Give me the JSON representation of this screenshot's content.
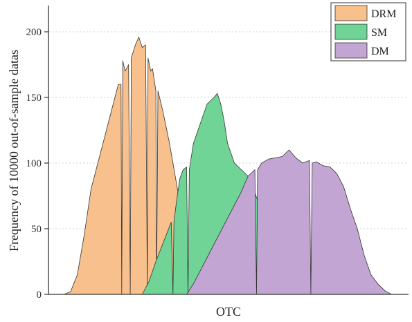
{
  "chart_data": {
    "type": "area",
    "xlabel": "OTC",
    "ylabel": "Frequency of 10000 out-of-sample datas",
    "ylim": [
      0,
      220
    ],
    "yticks": [
      0,
      50,
      100,
      150,
      200
    ],
    "grid": "horizontal dotted",
    "legend_position": "top-right",
    "x_index_range": [
      0,
      100
    ],
    "series": [
      {
        "name": "DRM",
        "color": "#f8c08c",
        "points": [
          [
            0,
            0
          ],
          [
            2,
            2
          ],
          [
            4,
            15
          ],
          [
            6,
            45
          ],
          [
            8,
            80
          ],
          [
            10,
            100
          ],
          [
            12,
            120
          ],
          [
            14,
            140
          ],
          [
            16,
            160
          ],
          [
            16.8,
            160
          ],
          [
            17,
            0
          ],
          [
            17.3,
            178
          ],
          [
            18,
            170
          ],
          [
            19,
            175
          ],
          [
            19.5,
            0
          ],
          [
            19.8,
            180
          ],
          [
            21,
            190
          ],
          [
            22,
            196
          ],
          [
            23,
            188
          ],
          [
            24,
            190
          ],
          [
            24.5,
            0
          ],
          [
            24.7,
            180
          ],
          [
            25.5,
            170
          ],
          [
            26,
            172
          ],
          [
            27,
            155
          ],
          [
            27.2,
            0
          ],
          [
            27.6,
            155
          ],
          [
            29,
            140
          ],
          [
            31,
            115
          ],
          [
            33,
            85
          ],
          [
            35,
            55
          ],
          [
            36,
            30
          ],
          [
            37,
            12
          ],
          [
            38,
            3
          ],
          [
            39,
            0
          ]
        ]
      },
      {
        "name": "SM",
        "color": "#6fd496",
        "points": [
          [
            23,
            0
          ],
          [
            25,
            10
          ],
          [
            27,
            25
          ],
          [
            30,
            45
          ],
          [
            31.5,
            55
          ],
          [
            32,
            0
          ],
          [
            32.3,
            55
          ],
          [
            33,
            70
          ],
          [
            34,
            88
          ],
          [
            35,
            95
          ],
          [
            36,
            97
          ],
          [
            36.4,
            0
          ],
          [
            36.8,
            95
          ],
          [
            38,
            115
          ],
          [
            40,
            130
          ],
          [
            42,
            145
          ],
          [
            44,
            150
          ],
          [
            45,
            153
          ],
          [
            46,
            145
          ],
          [
            47,
            132
          ],
          [
            48,
            115
          ],
          [
            50,
            100
          ],
          [
            52,
            95
          ],
          [
            54,
            90
          ],
          [
            55,
            85
          ],
          [
            57,
            70
          ],
          [
            60,
            50
          ],
          [
            62,
            30
          ],
          [
            64,
            10
          ],
          [
            66,
            0
          ]
        ]
      },
      {
        "name": "DM",
        "color": "#c2a5d3",
        "points": [
          [
            36,
            0
          ],
          [
            38,
            8
          ],
          [
            40,
            18
          ],
          [
            42,
            28
          ],
          [
            44,
            38
          ],
          [
            46,
            48
          ],
          [
            48,
            58
          ],
          [
            50,
            68
          ],
          [
            52,
            78
          ],
          [
            54,
            90
          ],
          [
            56,
            95
          ],
          [
            56.5,
            0
          ],
          [
            56.8,
            95
          ],
          [
            58,
            100
          ],
          [
            60,
            103
          ],
          [
            62,
            104
          ],
          [
            64,
            105
          ],
          [
            66,
            110
          ],
          [
            68,
            104
          ],
          [
            70,
            100
          ],
          [
            72,
            102
          ],
          [
            72.4,
            0
          ],
          [
            72.8,
            100
          ],
          [
            74,
            101
          ],
          [
            76,
            98
          ],
          [
            78,
            97
          ],
          [
            80,
            92
          ],
          [
            82,
            82
          ],
          [
            84,
            65
          ],
          [
            86,
            50
          ],
          [
            88,
            30
          ],
          [
            90,
            15
          ],
          [
            92,
            8
          ],
          [
            94,
            3
          ],
          [
            96,
            0
          ]
        ]
      }
    ]
  }
}
